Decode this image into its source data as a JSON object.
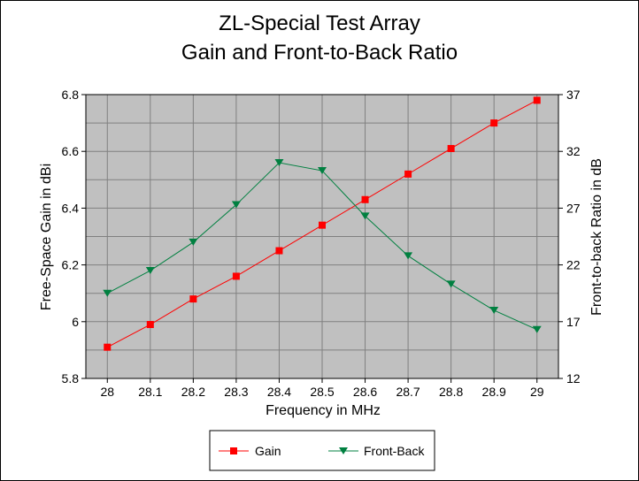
{
  "chart_data": {
    "type": "line",
    "title": [
      "ZL-Special Test Array",
      "Gain and Front-to-Back Ratio"
    ],
    "xlabel": "Frequency in MHz",
    "ylabel_left": "Free-Space Gain in dBi",
    "ylabel_right": "Front-to-back Ratio in dB",
    "categories": [
      "28",
      "28.1",
      "28.2",
      "28.3",
      "28.4",
      "28.5",
      "28.6",
      "28.7",
      "28.8",
      "28.9",
      "29"
    ],
    "y_left_ticks": [
      "5.8",
      "6",
      "6.2",
      "6.4",
      "6.6",
      "6.8"
    ],
    "y_right_ticks": [
      "12",
      "17",
      "22",
      "27",
      "32",
      "37"
    ],
    "ylim_left": [
      5.8,
      6.8
    ],
    "ylim_right": [
      12,
      37
    ],
    "grid": true,
    "legend_position": "bottom",
    "series": [
      {
        "name": "Gain",
        "axis": "left",
        "color": "#ff0000",
        "line_color": "#ff0000",
        "marker": "square",
        "values": [
          5.91,
          5.99,
          6.08,
          6.16,
          6.25,
          6.34,
          6.43,
          6.52,
          6.61,
          6.7,
          6.78
        ]
      },
      {
        "name": "Front-Back",
        "axis": "right",
        "color": "#008040",
        "line_color": "#008040",
        "marker": "triangle-down",
        "values": [
          19.5,
          21.5,
          24.0,
          27.3,
          31.0,
          30.3,
          26.3,
          22.8,
          20.3,
          18.0,
          16.3
        ]
      }
    ]
  }
}
